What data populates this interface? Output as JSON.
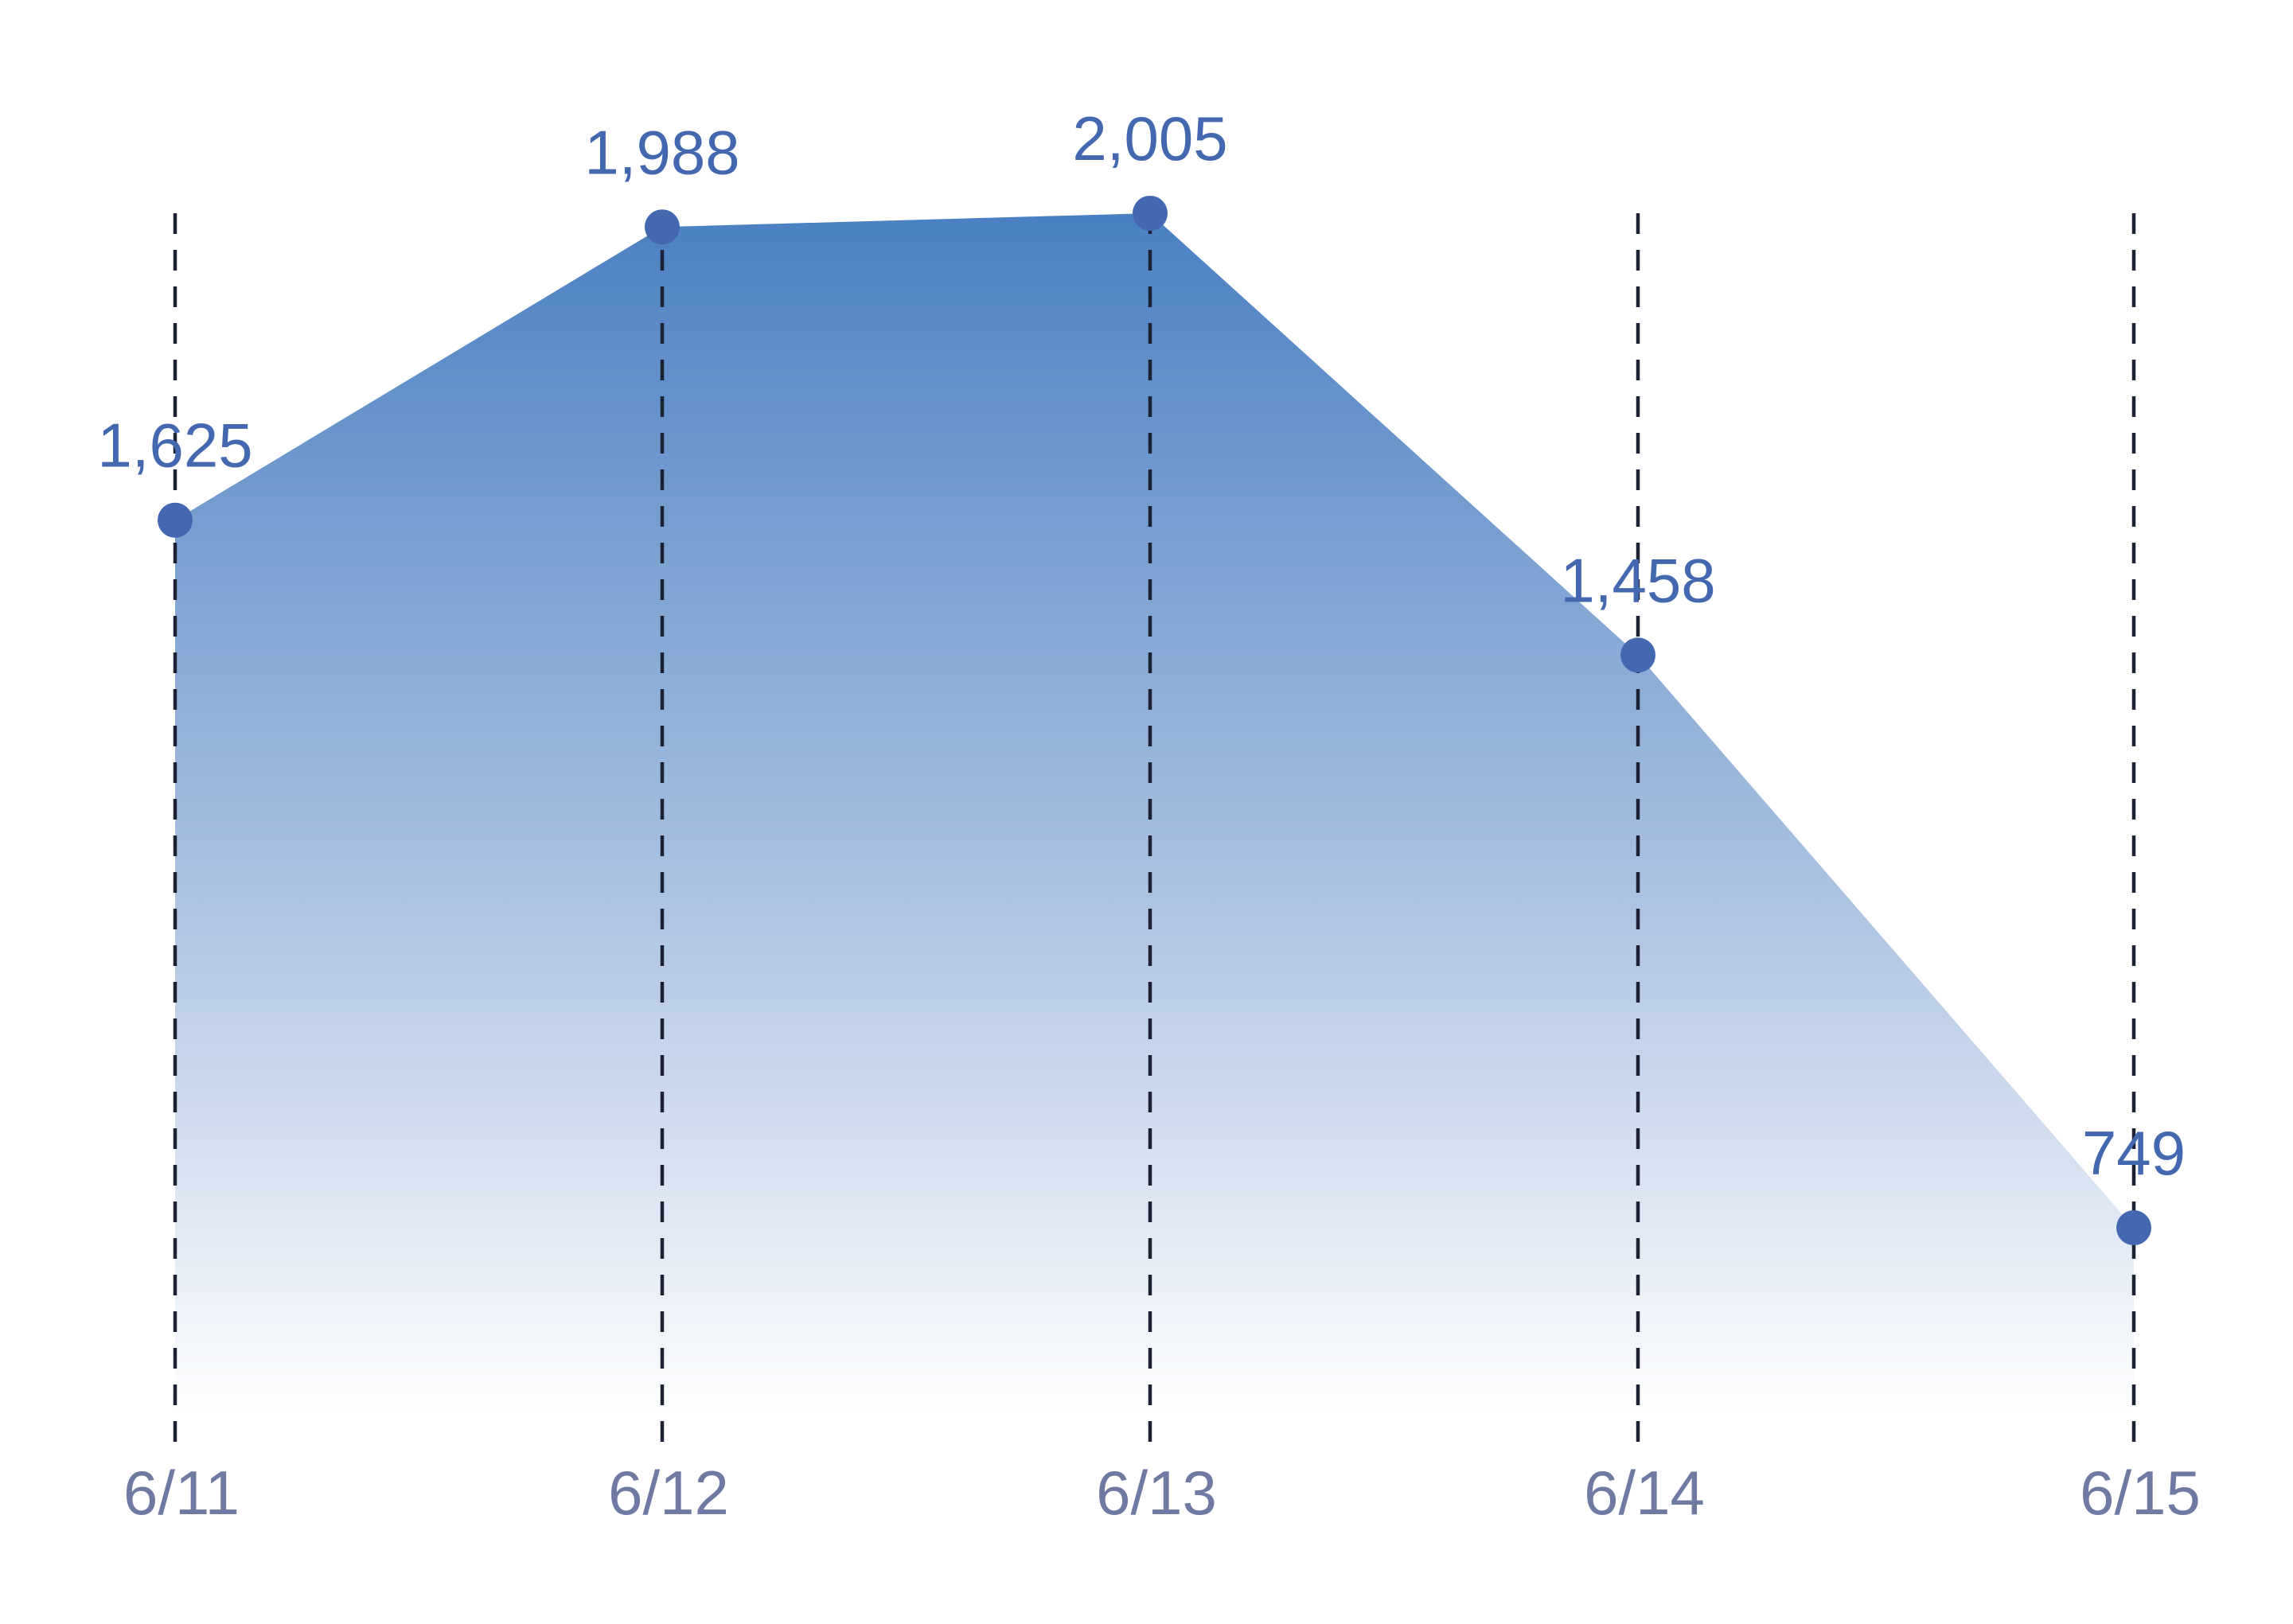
{
  "chart_data": {
    "type": "area",
    "categories": [
      "6/11",
      "6/12",
      "6/13",
      "6/14",
      "6/15"
    ],
    "values": [
      1625,
      1988,
      2005,
      1458,
      749
    ],
    "value_labels": [
      "1,625",
      "1,988",
      "2,005",
      "1,458",
      "749"
    ],
    "title": "",
    "xlabel": "",
    "ylabel": "",
    "ylim": [
      0,
      2160
    ],
    "grid": "vertical dashed lines at each category",
    "legend": "none",
    "colors": {
      "area_top": "#4a80c2",
      "area_bottom": "#ffffff",
      "points": "#4468b0",
      "value_labels": "#4468b0",
      "tick_labels": "#6f7aa3",
      "guides": "#1c2233"
    }
  }
}
